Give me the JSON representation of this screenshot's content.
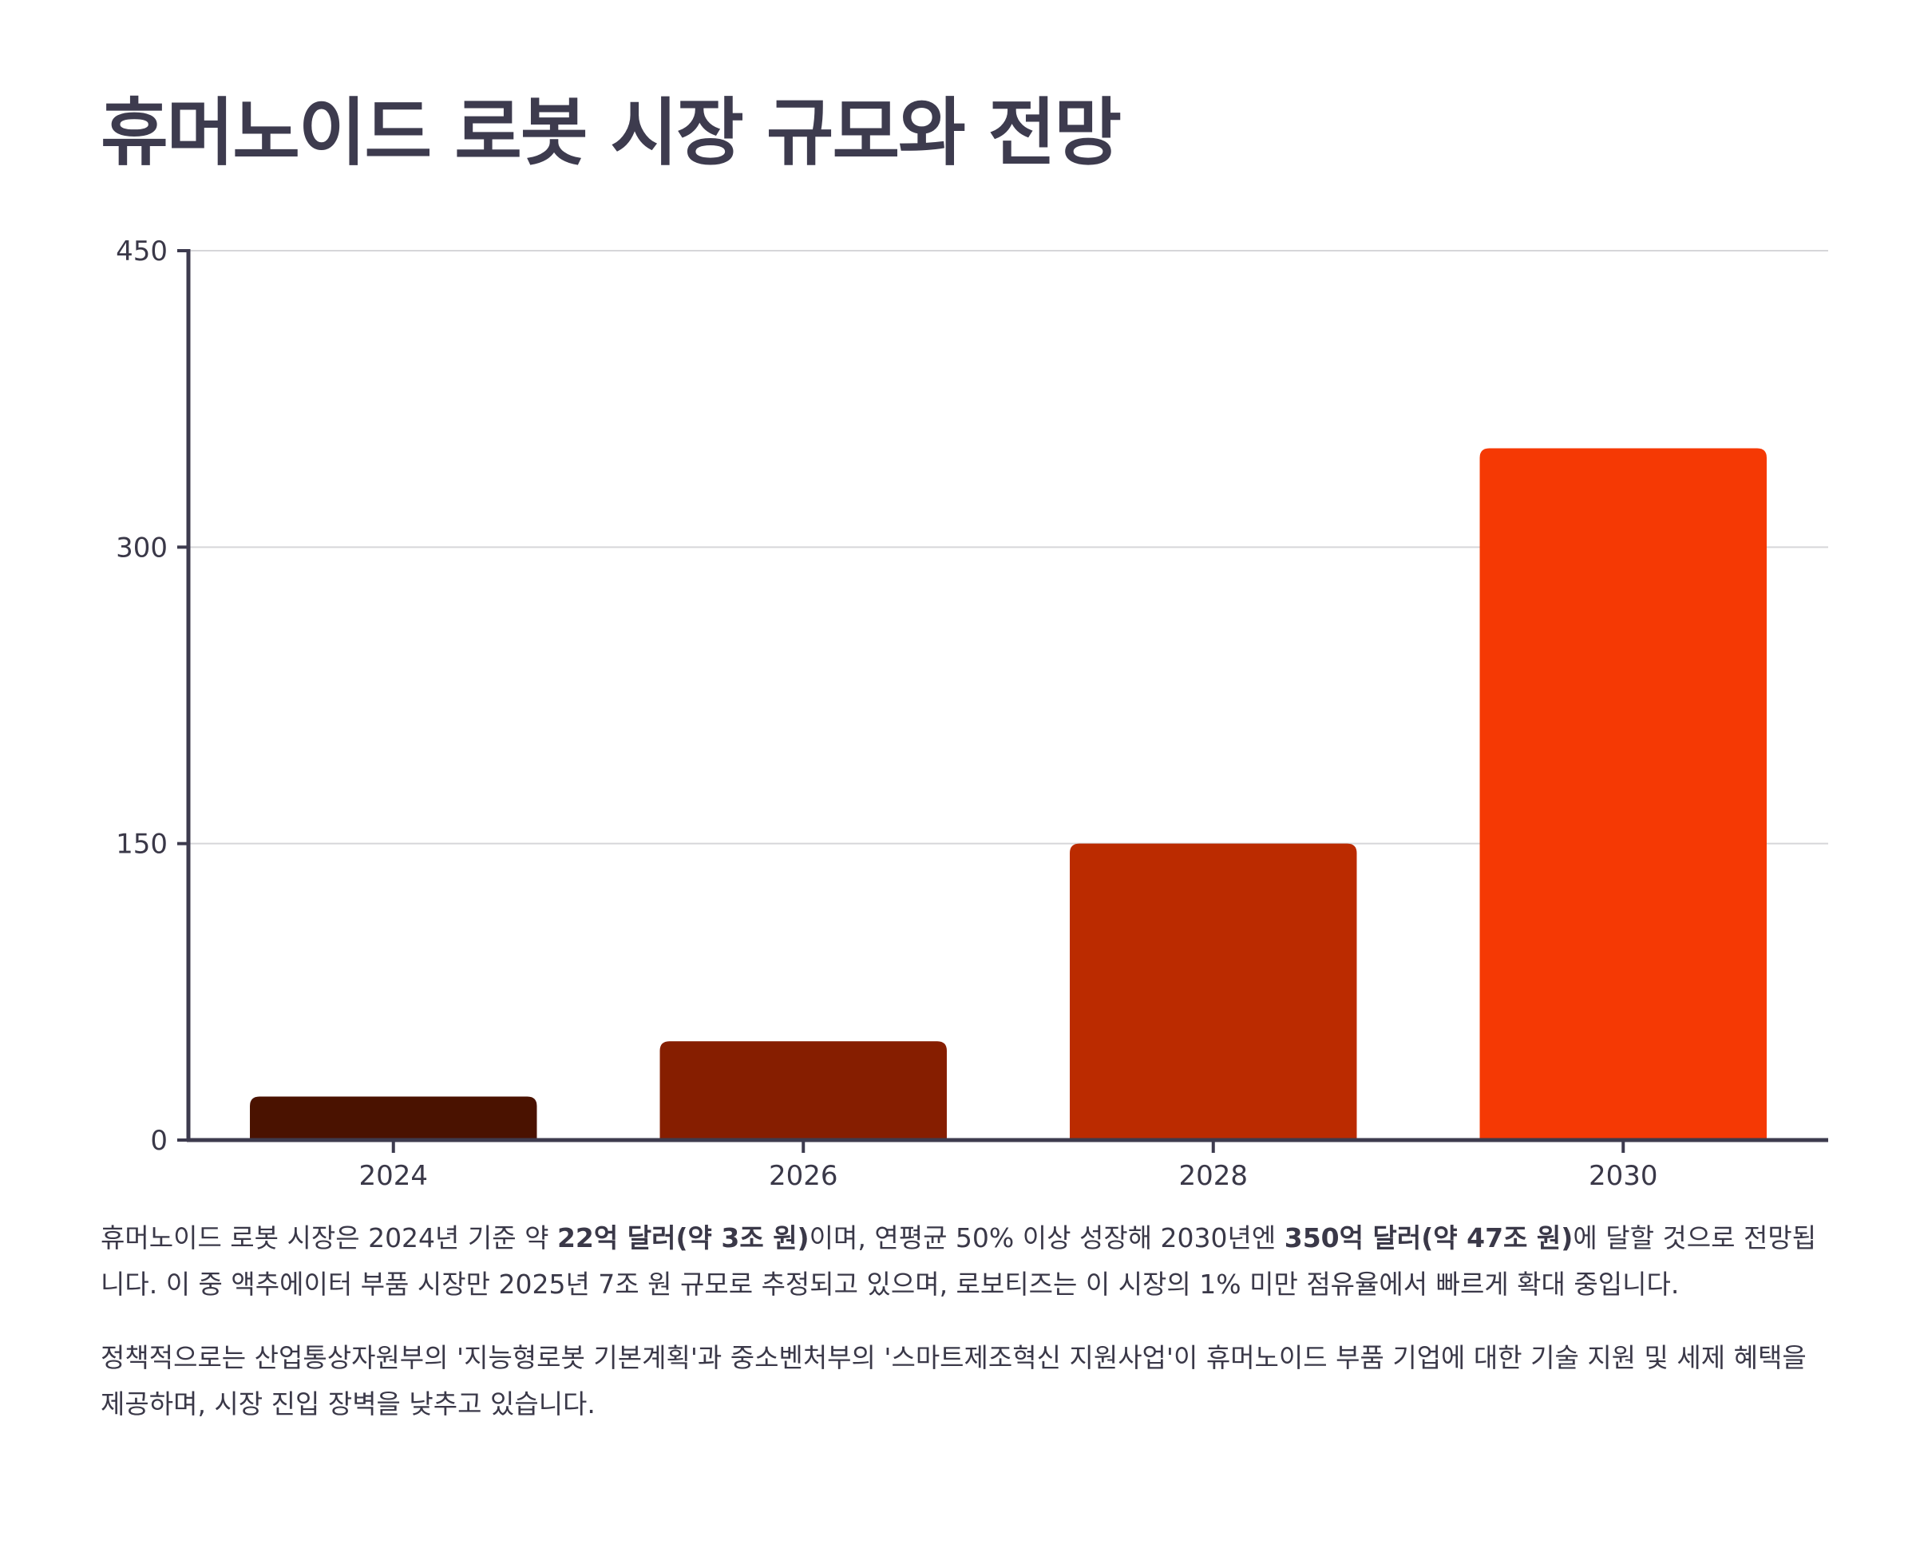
{
  "title": "휴머노이드 로봇 시장 규모와 전망",
  "colors": {
    "axis": "#3d3b4e",
    "grid": "#d6d6d9",
    "text": "#3a3848",
    "bars": [
      "#4a1200",
      "#861e00",
      "#bb2b00",
      "#f53904"
    ]
  },
  "chart_data": {
    "type": "bar",
    "categories": [
      "2024",
      "2026",
      "2028",
      "2030"
    ],
    "values": [
      22,
      50,
      150,
      350
    ],
    "ylim": [
      0,
      450
    ],
    "yticks": [
      "0",
      "150",
      "300",
      "450"
    ],
    "grid": true,
    "xlabel": "",
    "ylabel": ""
  },
  "paragraph1": {
    "t1": "휴머노이드 로봇 시장은 2024년 기준 약 ",
    "b1": "22억 달러(약 3조 원)",
    "t2": "이며, 연평균 50% 이상 성장해 2030년엔 ",
    "b2": "350억 달러(약 47조 원)",
    "t3": "에 달할 것으로 전망됩니다. 이 중 액추에이터 부품 시장만 2025년 7조 원 규모로 추정되고 있으며, 로보티즈는 이 시장의 1% 미만 점유율에서 빠르게 확대 중입니다."
  },
  "paragraph2": "정책적으로는 산업통상자원부의 '지능형로봇 기본계획'과 중소벤처부의 '스마트제조혁신 지원사업'이 휴머노이드 부품 기업에 대한 기술 지원 및 세제 혜택을 제공하며, 시장 진입 장벽을 낮추고 있습니다."
}
